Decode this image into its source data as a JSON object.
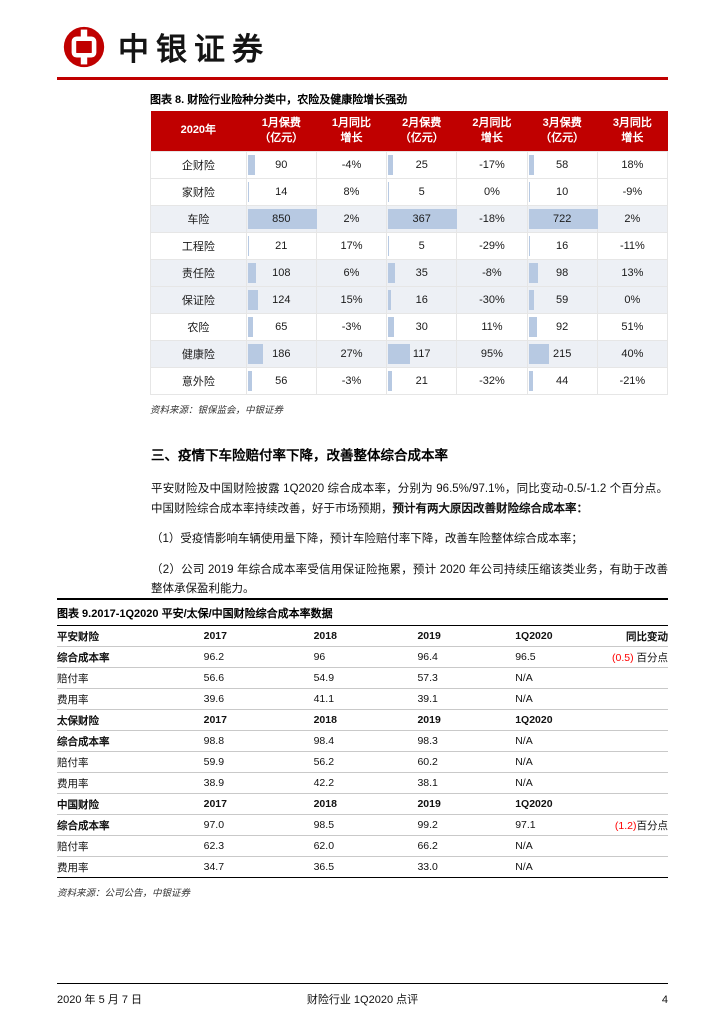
{
  "colors": {
    "brand_red": "#c00000",
    "data_bar": "#b7c9e2",
    "negative_red": "#ff0000"
  },
  "brand": {
    "name": "中银证券"
  },
  "figure8": {
    "title": "图表 8. 财险行业险种分类中，农险及健康险增长强劲",
    "source": "资料来源：银保监会，中银证券",
    "header": {
      "c0": "2020年",
      "c1_top": "1月保费",
      "c1_bot": "（亿元）",
      "c2_top": "1月同比",
      "c2_bot": "增长",
      "c3_top": "2月保费",
      "c3_bot": "（亿元）",
      "c4_top": "2月同比",
      "c4_bot": "增长",
      "c5_top": "3月保费",
      "c5_bot": "（亿元）",
      "c6_top": "3月同比",
      "c6_bot": "增长"
    },
    "rows": [
      {
        "label": "企财险",
        "m1": 90,
        "m1_yoy": "-4%",
        "m2": 25,
        "m2_yoy": "-17%",
        "m3": 58,
        "m3_yoy": "18%"
      },
      {
        "label": "家财险",
        "m1": 14,
        "m1_yoy": "8%",
        "m2": 5,
        "m2_yoy": "0%",
        "m3": 10,
        "m3_yoy": "-9%"
      },
      {
        "label": "车险",
        "m1": 850,
        "m1_yoy": "2%",
        "m2": 367,
        "m2_yoy": "-18%",
        "m3": 722,
        "m3_yoy": "2%"
      },
      {
        "label": "工程险",
        "m1": 21,
        "m1_yoy": "17%",
        "m2": 5,
        "m2_yoy": "-29%",
        "m3": 16,
        "m3_yoy": "-11%"
      },
      {
        "label": "责任险",
        "m1": 108,
        "m1_yoy": "6%",
        "m2": 35,
        "m2_yoy": "-8%",
        "m3": 98,
        "m3_yoy": "13%"
      },
      {
        "label": "保证险",
        "m1": 124,
        "m1_yoy": "15%",
        "m2": 16,
        "m2_yoy": "-30%",
        "m3": 59,
        "m3_yoy": "0%"
      },
      {
        "label": "农险",
        "m1": 65,
        "m1_yoy": "-3%",
        "m2": 30,
        "m2_yoy": "11%",
        "m3": 92,
        "m3_yoy": "51%"
      },
      {
        "label": "健康险",
        "m1": 186,
        "m1_yoy": "27%",
        "m2": 117,
        "m2_yoy": "95%",
        "m3": 215,
        "m3_yoy": "40%"
      },
      {
        "label": "意外险",
        "m1": 56,
        "m1_yoy": "-3%",
        "m2": 21,
        "m2_yoy": "-32%",
        "m3": 44,
        "m3_yoy": "-21%"
      }
    ]
  },
  "section": {
    "heading": "三、疫情下车险赔付率下降，改善整体综合成本率",
    "p1": "平安财险及中国财险披露 1Q2020 综合成本率，分别为 96.5%/97.1%，同比变动-0.5/-1.2 个百分点。中国财险综合成本率持续改善，好于市场预期，",
    "p1_bold": "预计有两大原因改善财险综合成本率：",
    "p2": "（1）受疫情影响车辆使用量下降，预计车险赔付率下降，改善车险整体综合成本率；",
    "p3": "（2）公司 2019 年综合成本率受信用保证险拖累，预计 2020 年公司持续压缩该类业务，有助于改善整体承保盈利能力。"
  },
  "figure9": {
    "title": "图表 9.2017-1Q2020 平安/太保/中国财险综合成本率数据",
    "source": "资料来源：公司公告，中银证券",
    "change_header": "同比变动",
    "sections": [
      {
        "name": "平安财险",
        "years": [
          "2017",
          "2018",
          "2019",
          "1Q2020"
        ],
        "rows": [
          {
            "label": "综合成本率",
            "values": [
              "96.2",
              "96",
              "96.4",
              "96.5"
            ],
            "change": "(0.5)",
            "change_unit": " 百分点"
          },
          {
            "label": "赔付率",
            "values": [
              "56.6",
              "54.9",
              "57.3",
              "N/A"
            ],
            "change": "",
            "change_unit": ""
          },
          {
            "label": "费用率",
            "values": [
              "39.6",
              "41.1",
              "39.1",
              "N/A"
            ],
            "change": "",
            "change_unit": ""
          }
        ]
      },
      {
        "name": "太保财险",
        "years": [
          "2017",
          "2018",
          "2019",
          "1Q2020"
        ],
        "rows": [
          {
            "label": "综合成本率",
            "values": [
              "98.8",
              "98.4",
              "98.3",
              "N/A"
            ],
            "change": "",
            "change_unit": ""
          },
          {
            "label": "赔付率",
            "values": [
              "59.9",
              "56.2",
              "60.2",
              "N/A"
            ],
            "change": "",
            "change_unit": ""
          },
          {
            "label": "费用率",
            "values": [
              "38.9",
              "42.2",
              "38.1",
              "N/A"
            ],
            "change": "",
            "change_unit": ""
          }
        ]
      },
      {
        "name": "中国财险",
        "years": [
          "2017",
          "2018",
          "2019",
          "1Q2020"
        ],
        "rows": [
          {
            "label": "综合成本率",
            "values": [
              "97.0",
              "98.5",
              "99.2",
              "97.1"
            ],
            "change": "(1.2)",
            "change_unit": "百分点"
          },
          {
            "label": "赔付率",
            "values": [
              "62.3",
              "62.0",
              "66.2",
              "N/A"
            ],
            "change": "",
            "change_unit": ""
          },
          {
            "label": "费用率",
            "values": [
              "34.7",
              "36.5",
              "33.0",
              "N/A"
            ],
            "change": "",
            "change_unit": ""
          }
        ]
      }
    ]
  },
  "footer": {
    "date": "2020 年 5 月 7 日",
    "center": "财险行业 1Q2020 点评",
    "page": "4"
  }
}
